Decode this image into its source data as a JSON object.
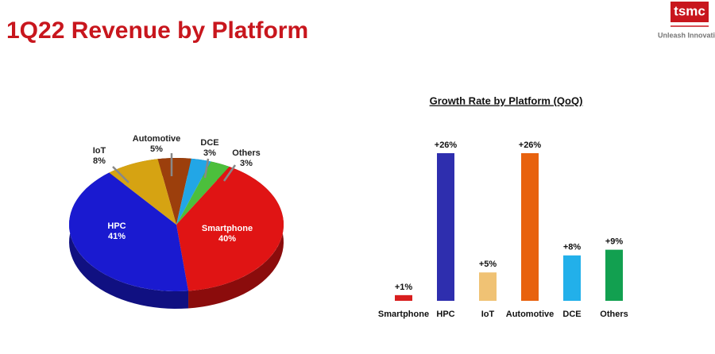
{
  "title": "1Q22 Revenue by Platform",
  "logo": "tsmc",
  "tagline": "Unleash Innovation",
  "chart_data": [
    {
      "type": "pie",
      "categories": [
        "Automotive",
        "DCE",
        "Others",
        "Smartphone",
        "HPC",
        "IoT"
      ],
      "values": [
        5,
        3,
        3,
        40,
        41,
        8
      ],
      "value_labels": [
        "5%",
        "3%",
        "3%",
        "40%",
        "41%",
        "8%"
      ],
      "colors": [
        "#9c3f0c",
        "#22a6e6",
        "#4cbf3c",
        "#e01414",
        "#1a1ad0",
        "#d6a312"
      ]
    },
    {
      "type": "bar",
      "title": "Growth Rate by Platform (QoQ)",
      "categories": [
        "Smartphone",
        "HPC",
        "IoT",
        "Automotive",
        "DCE",
        "Others"
      ],
      "values": [
        1,
        26,
        5,
        26,
        8,
        9
      ],
      "value_labels": [
        "+1%",
        "+26%",
        "+5%",
        "+26%",
        "+8%",
        "+9%"
      ],
      "colors": [
        "#d81e1e",
        "#2e2eae",
        "#f0c274",
        "#e8620e",
        "#22b0ea",
        "#12a050"
      ]
    }
  ]
}
